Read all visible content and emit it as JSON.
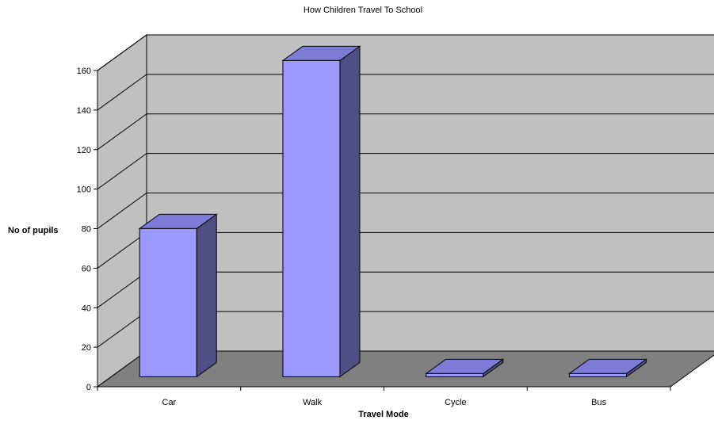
{
  "chart_data": {
    "type": "bar",
    "title": "How Children Travel To School",
    "xlabel": "Travel Mode",
    "ylabel": "No of pupils",
    "categories": [
      "Car",
      "Walk",
      "Cycle",
      "Bus"
    ],
    "values": [
      75,
      160,
      1,
      1
    ],
    "ylim": [
      0,
      160
    ],
    "yticks": [
      "0",
      "20",
      "40",
      "60",
      "80",
      "100",
      "120",
      "140",
      "160"
    ],
    "grid": true,
    "style": "3d-column",
    "colors": {
      "bar_front": "#9999ff",
      "bar_top": "#7c7cd6",
      "bar_side": "#4f4f86",
      "back_wall": "#c0c0c0",
      "side_wall": "#c0c0c0",
      "floor": "#808080"
    }
  }
}
